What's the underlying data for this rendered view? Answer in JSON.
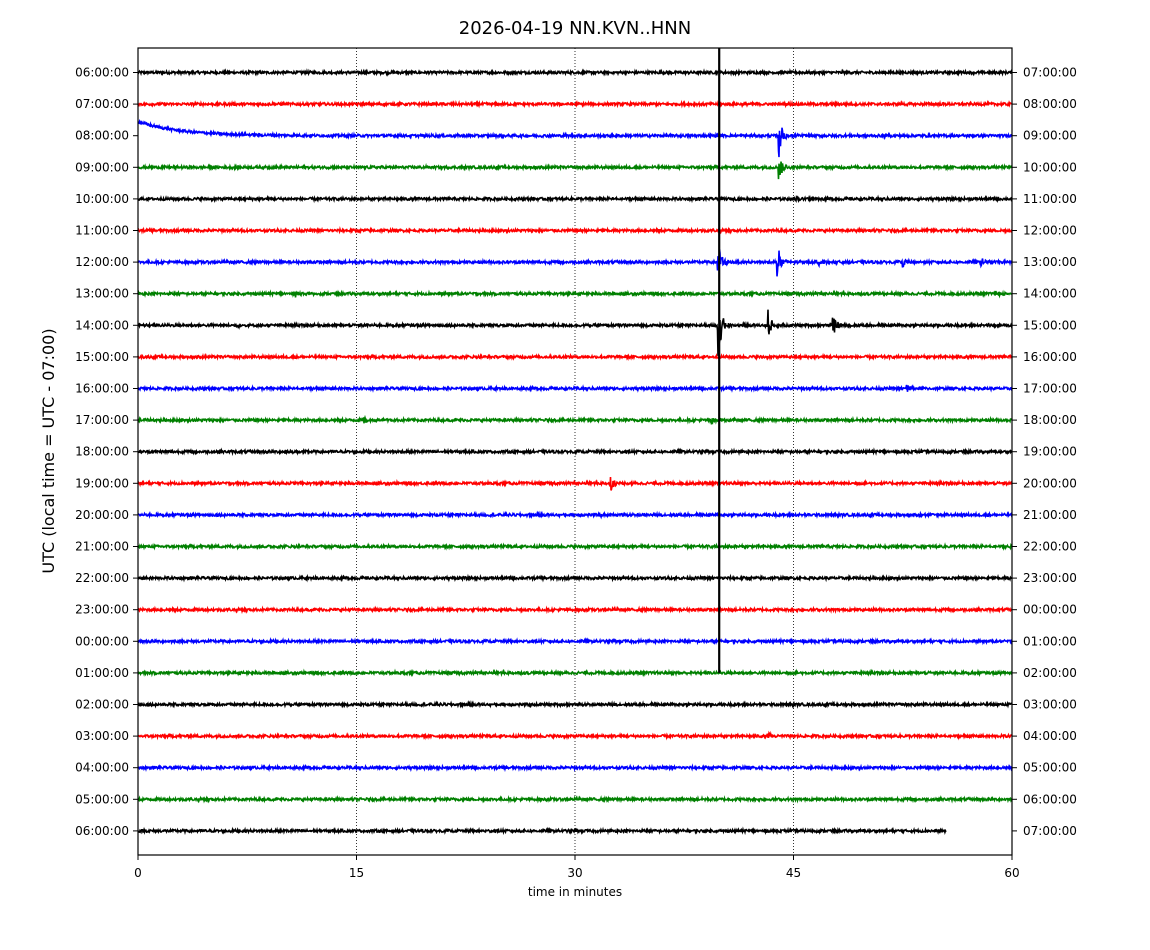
{
  "chart_data": {
    "type": "line",
    "title": "2026-04-19 NN.KVN..HNN",
    "xlabel": "time in minutes",
    "ylabel": "UTC (local time = UTC - 07:00)",
    "xlim": [
      0,
      60
    ],
    "x_ticks": [
      0,
      15,
      30,
      45,
      60
    ],
    "x_tick_labels": [
      "0",
      "15",
      "30",
      "45",
      "60"
    ],
    "grid": "vertical dotted at 15, 30, 45",
    "color_cycle": [
      "#000000",
      "#ff0000",
      "#0000ff",
      "#008000"
    ],
    "left_tick_labels": [
      "06:00:00",
      "07:00:00",
      "08:00:00",
      "09:00:00",
      "10:00:00",
      "11:00:00",
      "12:00:00",
      "13:00:00",
      "14:00:00",
      "15:00:00",
      "16:00:00",
      "17:00:00",
      "18:00:00",
      "19:00:00",
      "20:00:00",
      "21:00:00",
      "22:00:00",
      "23:00:00",
      "00:00:00",
      "01:00:00",
      "02:00:00",
      "03:00:00",
      "04:00:00",
      "05:00:00",
      "06:00:00"
    ],
    "right_tick_labels": [
      "07:00:00",
      "08:00:00",
      "09:00:00",
      "10:00:00",
      "11:00:00",
      "12:00:00",
      "13:00:00",
      "14:00:00",
      "15:00:00",
      "16:00:00",
      "17:00:00",
      "18:00:00",
      "19:00:00",
      "20:00:00",
      "21:00:00",
      "22:00:00",
      "23:00:00",
      "00:00:00",
      "01:00:00",
      "02:00:00",
      "03:00:00",
      "04:00:00",
      "05:00:00",
      "06:00:00",
      "07:00:00"
    ],
    "last_trace_end_minute": 55.5,
    "events": [
      {
        "row": 2,
        "minute": 0,
        "type": "drift",
        "amp": 0.45
      },
      {
        "row": 2,
        "minute": 44.0,
        "amp": 1.6
      },
      {
        "row": 3,
        "minute": 44.0,
        "amp": 0.9
      },
      {
        "row": 4,
        "minute": 45.1,
        "amp": 0.15
      },
      {
        "row": 6,
        "minute": 39.8,
        "amp": 1.5
      },
      {
        "row": 6,
        "minute": 43.9,
        "amp": 1.45
      },
      {
        "row": 6,
        "minute": 46.7,
        "amp": 0.25
      },
      {
        "row": 6,
        "minute": 52.5,
        "amp": 0.3
      },
      {
        "row": 6,
        "minute": 57.9,
        "amp": 0.3
      },
      {
        "row": 7,
        "minute": 10.8,
        "amp": 0.18
      },
      {
        "row": 7,
        "minute": 58.9,
        "amp": 0.2
      },
      {
        "row": 8,
        "minute": 6.8,
        "amp": 0.12
      },
      {
        "row": 8,
        "minute": 39.8,
        "amp": 2.5
      },
      {
        "row": 8,
        "minute": 43.2,
        "amp": 1.3
      },
      {
        "row": 8,
        "minute": 47.7,
        "amp": 0.75
      },
      {
        "row": 8,
        "minute": 58.3,
        "amp": 0.12
      },
      {
        "row": 10,
        "minute": 52.8,
        "amp": 0.35
      },
      {
        "row": 11,
        "minute": 15.5,
        "amp": 0.3
      },
      {
        "row": 11,
        "minute": 39.3,
        "amp": 0.3
      },
      {
        "row": 12,
        "minute": 10.1,
        "amp": 0.12
      },
      {
        "row": 13,
        "minute": 32.4,
        "amp": 0.6
      },
      {
        "row": 14,
        "minute": 31.6,
        "amp": 0.15
      },
      {
        "row": 14,
        "minute": 53.7,
        "amp": 0.12
      },
      {
        "row": 15,
        "minute": 59.6,
        "amp": 0.17
      },
      {
        "row": 21,
        "minute": 43.3,
        "amp": 0.15
      }
    ],
    "spike": {
      "minute": 39.9,
      "from_row": 0,
      "to_row": 19
    }
  }
}
